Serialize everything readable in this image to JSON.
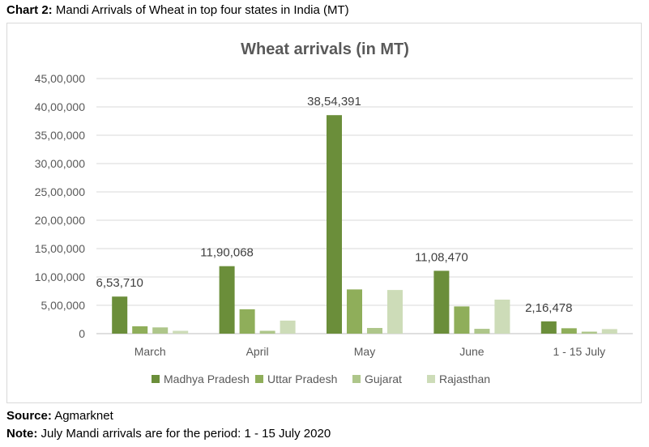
{
  "caption": {
    "prefix": "Chart 2:",
    "text": "Mandi Arrivals of Wheat in top four states in India (MT)"
  },
  "chart_data": {
    "type": "bar",
    "title": "Wheat arrivals (in MT)",
    "categories": [
      "March",
      "April",
      "May",
      "June",
      "1 - 15 July"
    ],
    "series": [
      {
        "name": "Madhya Pradesh",
        "color": "#6b8e3a",
        "values": [
          653710,
          1190068,
          3854391,
          1108470,
          216478
        ]
      },
      {
        "name": "Uttar Pradesh",
        "color": "#8fae5a",
        "values": [
          130000,
          430000,
          780000,
          480000,
          95000
        ]
      },
      {
        "name": "Gujarat",
        "color": "#aec68a",
        "values": [
          110000,
          50000,
          100000,
          85000,
          35000
        ]
      },
      {
        "name": "Rajasthan",
        "color": "#cddcb8",
        "values": [
          50000,
          230000,
          770000,
          600000,
          80000
        ]
      }
    ],
    "data_labels": [
      "6,53,710",
      "11,90,068",
      "38,54,391",
      "11,08,470",
      "2,16,478"
    ],
    "ylim": [
      0,
      4500000
    ],
    "yticks": [
      0,
      500000,
      1000000,
      1500000,
      2000000,
      2500000,
      3000000,
      3500000,
      4000000,
      4500000
    ],
    "ytick_labels": [
      "0",
      "5,00,000",
      "10,00,000",
      "15,00,000",
      "20,00,000",
      "25,00,000",
      "30,00,000",
      "35,00,000",
      "40,00,000",
      "45,00,000"
    ],
    "grid": true,
    "legend_position": "bottom"
  },
  "footer": {
    "source_label": "Source:",
    "source_text": "Agmarknet",
    "note_label": "Note:",
    "note_text": "July Mandi arrivals are for the period: 1 - 15 July 2020"
  }
}
